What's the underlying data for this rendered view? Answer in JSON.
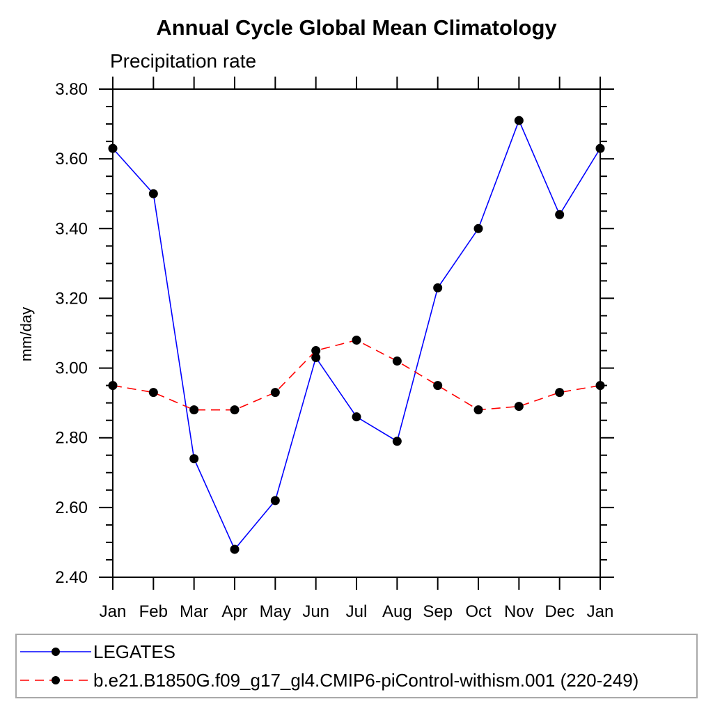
{
  "chart_data": {
    "type": "line",
    "title": "Annual Cycle Global Mean Climatology",
    "subtitle": "Precipitation rate",
    "ylabel": "mm/day",
    "xlabel": "",
    "categories": [
      "Jan",
      "Feb",
      "Mar",
      "Apr",
      "May",
      "Jun",
      "Jul",
      "Aug",
      "Sep",
      "Oct",
      "Nov",
      "Dec",
      "Jan"
    ],
    "series": [
      {
        "name": "LEGATES",
        "color": "#0000ff",
        "line_style": "solid",
        "marker": "filled-circle",
        "marker_color": "#000000",
        "values": [
          3.63,
          3.5,
          2.74,
          2.48,
          2.62,
          3.03,
          2.86,
          2.79,
          3.23,
          3.4,
          3.71,
          3.44,
          3.63
        ]
      },
      {
        "name": "b.e21.B1850G.f09_g17_gl4.CMIP6-piControl-withism.001 (220-249)",
        "color": "#ff0000",
        "line_style": "dashed",
        "marker": "filled-circle",
        "marker_color": "#000000",
        "values": [
          2.95,
          2.93,
          2.88,
          2.88,
          2.93,
          3.05,
          3.08,
          3.02,
          2.95,
          2.88,
          2.89,
          2.93,
          2.95
        ]
      }
    ],
    "ylim": [
      2.4,
      3.8
    ],
    "ytick_major": 0.2,
    "ytick_minor": 0.05,
    "ytick_label_format": "2dp",
    "grid": false,
    "axis_color": "#000000",
    "legend_position": "bottom",
    "legend_border_color": "#a9a9a9"
  }
}
